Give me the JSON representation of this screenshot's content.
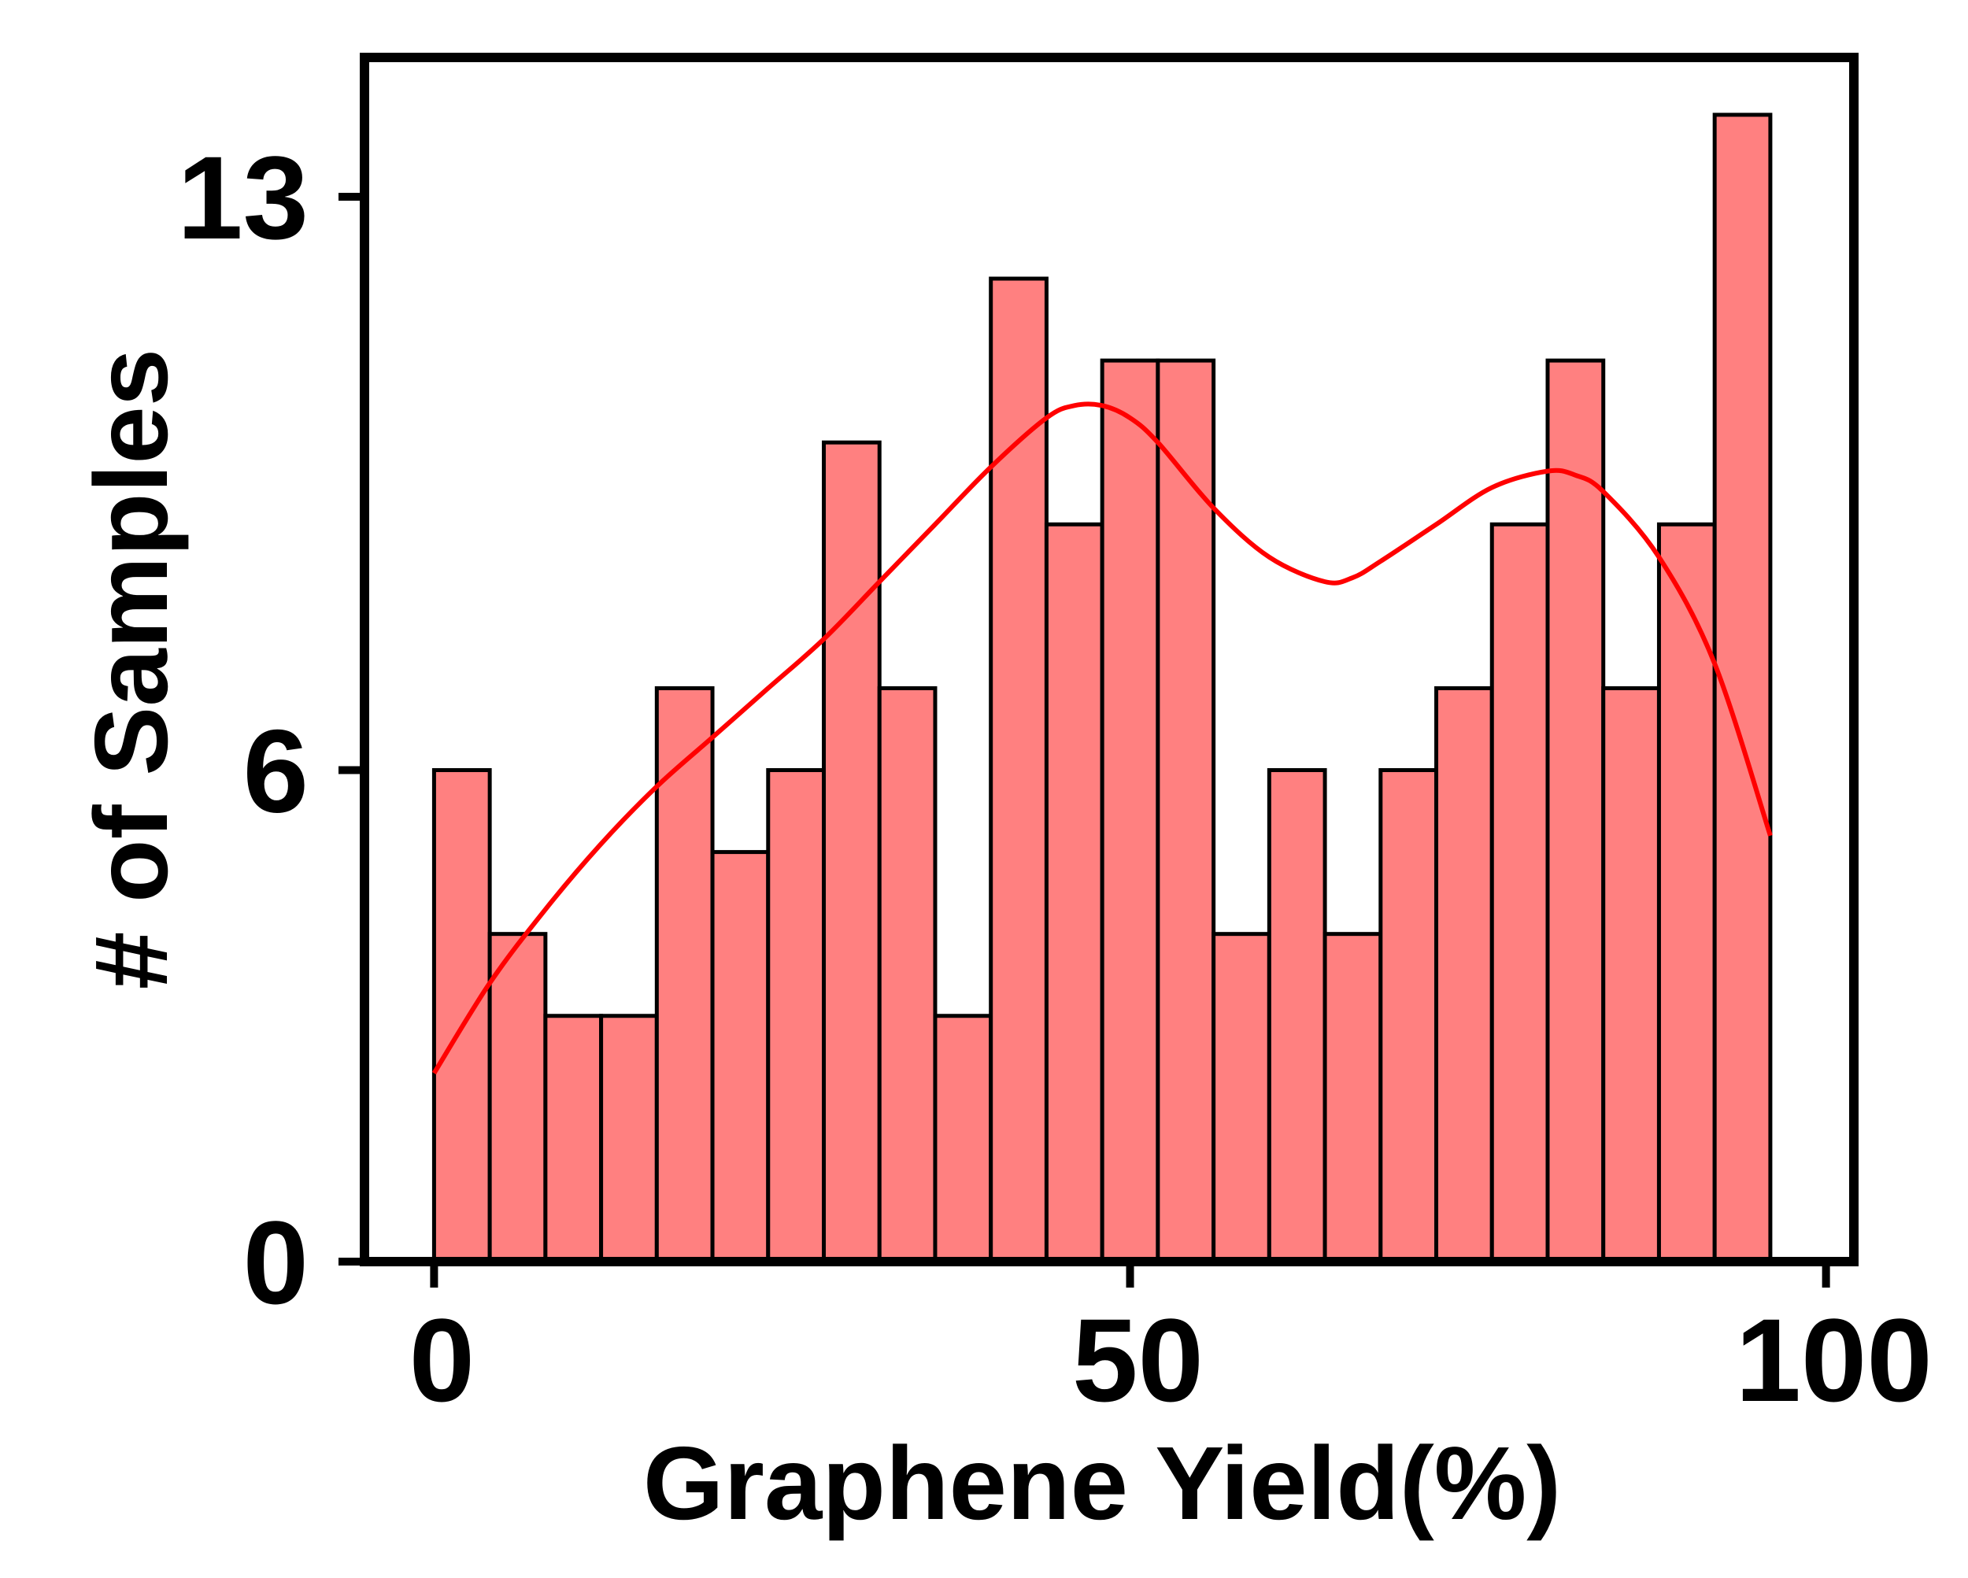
{
  "chart_data": {
    "type": "bar",
    "xlabel": "Graphene Yield(%)",
    "ylabel": "# of Samples",
    "xlim": [
      -5,
      102
    ],
    "ylim": [
      0,
      14.7
    ],
    "xticks": [
      0,
      50,
      100
    ],
    "xtick_labels": [
      "0",
      "50",
      "100"
    ],
    "yticks": [
      0,
      6,
      13
    ],
    "ytick_labels": [
      "0",
      "6",
      "13"
    ],
    "grid": false,
    "legend": "none",
    "bin_width": 4,
    "bins": [
      {
        "x0": 0,
        "x1": 4,
        "count": 6
      },
      {
        "x0": 4,
        "x1": 8,
        "count": 4
      },
      {
        "x0": 8,
        "x1": 12,
        "count": 3
      },
      {
        "x0": 12,
        "x1": 16,
        "count": 3
      },
      {
        "x0": 16,
        "x1": 20,
        "count": 7
      },
      {
        "x0": 20,
        "x1": 24,
        "count": 5
      },
      {
        "x0": 24,
        "x1": 28,
        "count": 6
      },
      {
        "x0": 28,
        "x1": 32,
        "count": 10
      },
      {
        "x0": 32,
        "x1": 36,
        "count": 7
      },
      {
        "x0": 36,
        "x1": 40,
        "count": 3
      },
      {
        "x0": 40,
        "x1": 44,
        "count": 12
      },
      {
        "x0": 44,
        "x1": 48,
        "count": 9
      },
      {
        "x0": 48,
        "x1": 52,
        "count": 11
      },
      {
        "x0": 52,
        "x1": 56,
        "count": 11
      },
      {
        "x0": 56,
        "x1": 60,
        "count": 4
      },
      {
        "x0": 60,
        "x1": 64,
        "count": 6
      },
      {
        "x0": 64,
        "x1": 68,
        "count": 4
      },
      {
        "x0": 68,
        "x1": 72,
        "count": 6
      },
      {
        "x0": 72,
        "x1": 76,
        "count": 7
      },
      {
        "x0": 76,
        "x1": 80,
        "count": 9
      },
      {
        "x0": 80,
        "x1": 84,
        "count": 11
      },
      {
        "x0": 84,
        "x1": 88,
        "count": 7
      },
      {
        "x0": 88,
        "x1": 92,
        "count": 9
      },
      {
        "x0": 92,
        "x1": 96,
        "count": 14
      }
    ],
    "kde_curve": {
      "x": [
        0,
        4,
        8,
        12,
        16,
        20,
        24,
        28,
        32,
        36,
        40,
        44,
        46,
        48,
        50,
        52,
        56,
        60,
        64,
        66,
        68,
        72,
        76,
        80,
        82,
        84,
        88,
        92,
        96
      ],
      "y": [
        2.3,
        3.4,
        4.3,
        5.1,
        5.8,
        6.4,
        7.0,
        7.6,
        8.3,
        9.0,
        9.7,
        10.3,
        10.45,
        10.45,
        10.3,
        10.0,
        9.2,
        8.6,
        8.3,
        8.35,
        8.55,
        9.0,
        9.45,
        9.65,
        9.6,
        9.4,
        8.6,
        7.3,
        5.2
      ]
    },
    "colors": {
      "bar_fill": "#ff8080",
      "bar_edge": "#000000",
      "kde_line": "#ff0000",
      "frame": "#000000"
    }
  }
}
